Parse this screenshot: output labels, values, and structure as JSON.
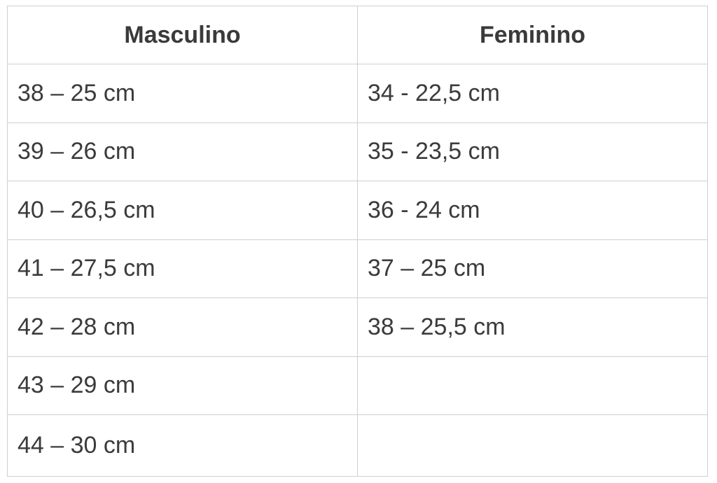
{
  "table": {
    "headers": [
      "Masculino",
      "Feminino"
    ],
    "rows": [
      [
        "38 – 25 cm",
        "34 - 22,5 cm"
      ],
      [
        "39 – 26 cm",
        "35 - 23,5 cm"
      ],
      [
        "40 – 26,5 cm",
        "36 - 24 cm"
      ],
      [
        "41 – 27,5 cm",
        "37 – 25 cm"
      ],
      [
        "42 – 28 cm",
        "38 – 25,5 cm"
      ],
      [
        "43 – 29 cm",
        ""
      ],
      [
        "44 – 30 cm",
        ""
      ]
    ]
  }
}
